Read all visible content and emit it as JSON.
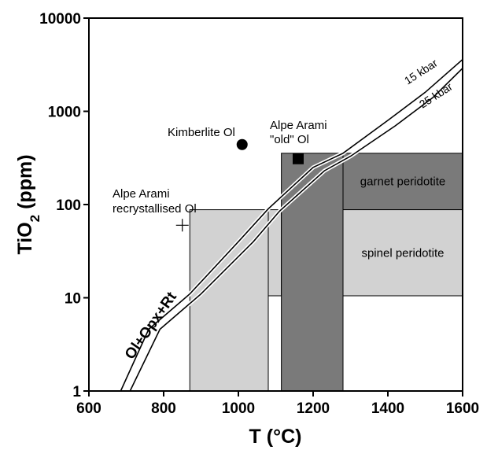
{
  "chart_data": {
    "type": "scatter",
    "xlabel": "T (°C)",
    "ylabel_main": "TiO",
    "ylabel_sub": "2",
    "ylabel_tail": " (ppm)",
    "xlim": [
      600,
      1600
    ],
    "ylim": [
      1,
      10000
    ],
    "y_scale": "log",
    "x_ticks": [
      600,
      800,
      1000,
      1200,
      1400,
      1600
    ],
    "x_tick_labels": [
      "600",
      "800",
      "1000",
      "1200",
      "1400",
      "1600"
    ],
    "y_ticks": [
      1,
      10,
      100,
      1000,
      10000
    ],
    "y_tick_labels": [
      "1",
      "10",
      "100",
      "1000",
      "10000"
    ],
    "grid": false,
    "points": [
      {
        "label": "Kimberlite Ol",
        "x": 1010,
        "y": 440,
        "marker": "circle"
      },
      {
        "label_line1": "Alpe Arami",
        "label_line2": "\"old\" Ol",
        "x": 1160,
        "y": 310,
        "marker": "square"
      },
      {
        "label_line1": "Alpe Arami",
        "label_line2": "recrystallised Ol",
        "x": 850,
        "y": 60,
        "marker": "plus"
      }
    ],
    "curves": [
      {
        "label": "15 kbar",
        "points": [
          [
            685,
            1
          ],
          [
            760,
            4.6
          ],
          [
            870,
            11
          ],
          [
            1000,
            40
          ],
          [
            1080,
            90
          ],
          [
            1200,
            250
          ],
          [
            1280,
            355
          ],
          [
            1400,
            800
          ],
          [
            1500,
            1600
          ],
          [
            1600,
            3600
          ]
        ]
      },
      {
        "label": "25 kbar",
        "points": [
          [
            710,
            1
          ],
          [
            790,
            4.6
          ],
          [
            900,
            11
          ],
          [
            1040,
            40
          ],
          [
            1110,
            85
          ],
          [
            1230,
            230
          ],
          [
            1300,
            330
          ],
          [
            1420,
            700
          ],
          [
            1520,
            1400
          ],
          [
            1600,
            2900
          ]
        ]
      }
    ],
    "boundary_label": "Ol+Opx+Rt",
    "regions": [
      {
        "label": "garnet peridotite",
        "x": [
          1280,
          1600
        ],
        "y": [
          88,
          355
        ],
        "fill": "#7a7a7a"
      },
      {
        "label": "spinel peridotite",
        "x": [
          1280,
          1600
        ],
        "y": [
          10.5,
          88
        ],
        "fill": "#d2d2d2"
      },
      {
        "label": "",
        "x": [
          870,
          1080
        ],
        "y": [
          1,
          88
        ],
        "fill": "#d2d2d2"
      },
      {
        "label": "",
        "x": [
          1080,
          1115
        ],
        "y": [
          10.5,
          88
        ],
        "fill": "#d2d2d2"
      },
      {
        "label": "",
        "x": [
          1115,
          1280
        ],
        "y": [
          1,
          355
        ],
        "fill": "#7a7a7a"
      }
    ],
    "colors": {
      "dark_field": "#7a7a7a",
      "light_field": "#d2d2d2",
      "ink": "#000000"
    }
  }
}
